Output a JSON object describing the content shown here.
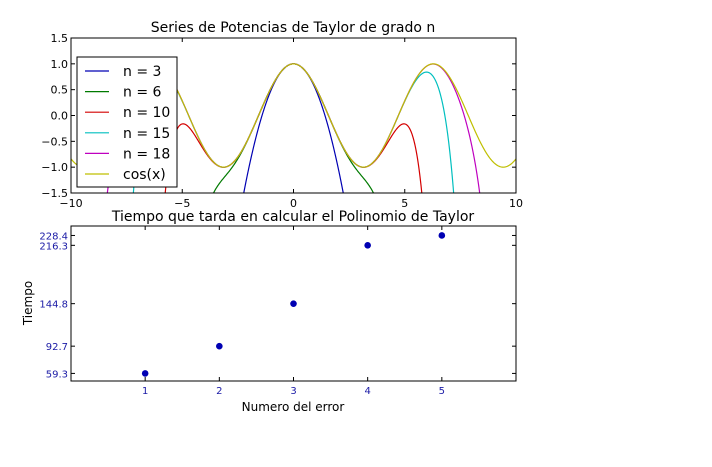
{
  "chart_data": [
    {
      "type": "line",
      "title": "Series de Potencias de Taylor de grado n",
      "xlabel": "",
      "ylabel": "",
      "xlim": [
        -10,
        10
      ],
      "ylim": [
        -1.5,
        1.5
      ],
      "xticks": [
        -10,
        -5,
        0,
        5,
        10
      ],
      "xtick_labels": [
        "−10",
        "−5",
        "0",
        "5",
        "10"
      ],
      "yticks": [
        1.5,
        1.0,
        0.5,
        0.0,
        -0.5,
        -1.0,
        -1.5
      ],
      "ytick_labels": [
        "1.5",
        "1.0",
        "0.5",
        "0.0",
        "−0.5",
        "−1.0",
        "−1.5"
      ],
      "legend_position": "upper-left",
      "series": [
        {
          "name": "n = 3",
          "degree": 3,
          "color": "#0000b3"
        },
        {
          "name": "n = 6",
          "degree": 6,
          "color": "#007a00"
        },
        {
          "name": "n = 10",
          "degree": 10,
          "color": "#d40000"
        },
        {
          "name": "n = 15",
          "degree": 15,
          "color": "#00bfbf"
        },
        {
          "name": "n = 18",
          "degree": 18,
          "color": "#bf00bf"
        },
        {
          "name": "cos(x)",
          "degree": null,
          "color": "#bfbf00"
        }
      ]
    },
    {
      "type": "scatter",
      "title": "Tiempo que tarda en calcular el Polinomio de Taylor",
      "xlabel": "Numero del error",
      "ylabel": "Tiempo",
      "xlim": [
        0,
        6
      ],
      "ylim": [
        50,
        240
      ],
      "xticks": [
        1,
        2,
        3,
        4,
        5
      ],
      "xtick_labels": [
        "1",
        "2",
        "3",
        "4",
        "5"
      ],
      "yticks": [
        59.3,
        92.7,
        144.8,
        216.3,
        228.4
      ],
      "ytick_labels": [
        "59.3",
        "92.7",
        "144.8",
        "216.3",
        "228.4"
      ],
      "x": [
        1,
        2,
        3,
        4,
        5
      ],
      "y": [
        59.3,
        92.7,
        144.8,
        216.3,
        228.4
      ],
      "color": "#0000b3"
    }
  ]
}
